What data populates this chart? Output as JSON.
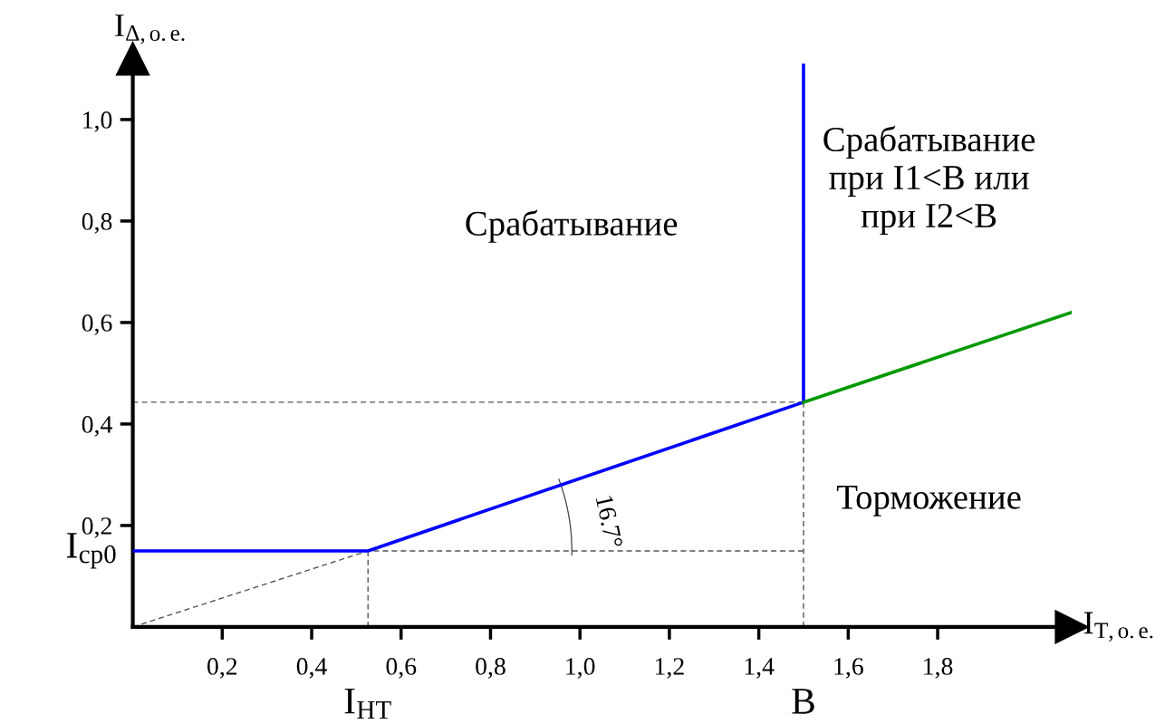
{
  "chart_data": {
    "type": "line",
    "xlabel": "I$_{Т,о.е.}$",
    "ylabel": "I$_{Δ,о.е.}$",
    "xlim": [
      0,
      2.1
    ],
    "ylim": [
      0,
      1.12
    ],
    "xticks": [
      {
        "value": 0.2,
        "label": "0,2"
      },
      {
        "value": 0.4,
        "label": "0,4"
      },
      {
        "value": 0.6,
        "label": "0,6"
      },
      {
        "value": 0.8,
        "label": "0,8"
      },
      {
        "value": 1.0,
        "label": "1,0"
      },
      {
        "value": 1.2,
        "label": "1,2"
      },
      {
        "value": 1.4,
        "label": "1,4"
      },
      {
        "value": 1.6,
        "label": "1,6"
      },
      {
        "value": 1.8,
        "label": "1,8"
      }
    ],
    "yticks": [
      {
        "value": 0.2,
        "label": "0,2"
      },
      {
        "value": 0.4,
        "label": "0,4"
      },
      {
        "value": 0.6,
        "label": "0,6"
      },
      {
        "value": 0.8,
        "label": "0,8"
      },
      {
        "value": 1.0,
        "label": "1,0"
      }
    ],
    "grid": false,
    "legend": false,
    "series": [
      {
        "color": "#0000ff",
        "line_style": "solid",
        "x": [
          0,
          0.526,
          1.5,
          1.5
        ],
        "values": [
          0.15,
          0.15,
          0.443,
          1.107
        ]
      },
      {
        "color": "#009900",
        "line_style": "solid",
        "x": [
          1.5,
          2.1
        ],
        "values": [
          0.443,
          0.62
        ]
      },
      {
        "color": "#555555",
        "line_style": "dashed",
        "x": [
          0,
          0.526,
          1.5
        ],
        "values": [
          0,
          0.15,
          0.15
        ]
      },
      {
        "color": "#555555",
        "line_style": "dashed",
        "x": [
          0,
          1.5
        ],
        "values": [
          0.443,
          0.443
        ]
      },
      {
        "color": "#555555",
        "line_style": "dashed",
        "x": [
          0.526,
          0.526
        ],
        "values": [
          0,
          0.15
        ]
      },
      {
        "color": "#555555",
        "line_style": "dashed",
        "x": [
          1.5,
          1.5
        ],
        "values": [
          0,
          0.443
        ]
      }
    ],
    "annotations": [
      {
        "text": "I$_{ср0}$",
        "x": 0,
        "y": 0.15
      },
      {
        "text": "I$_{НТ}$",
        "x": 0.526,
        "y": 0
      },
      {
        "text": "B",
        "x": 1.5,
        "y": 0
      },
      "Срабатывание",
      "Срабатывание\nпри I1<B или\nпри I2<B",
      "Торможение",
      "16.7°"
    ]
  }
}
